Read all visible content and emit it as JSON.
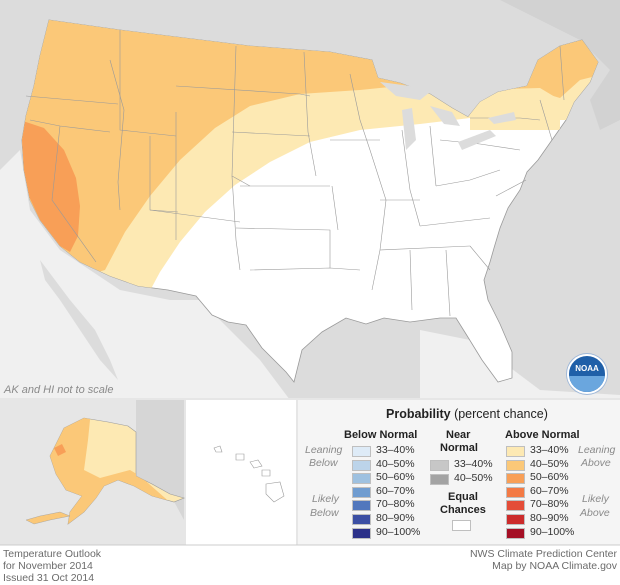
{
  "map": {
    "scale_note": "AK and HI not to scale",
    "logo_text": "NOAA"
  },
  "legend": {
    "title_bold": "Probability",
    "title_rest": " (percent chance)",
    "below": {
      "header": "Below Normal",
      "ranges": [
        "33–40%",
        "40–50%",
        "50–60%",
        "60–70%",
        "70–80%",
        "80–90%",
        "90–100%"
      ],
      "colors": [
        "#deebf7",
        "#bcd4ea",
        "#9ec1e0",
        "#6f9cd0",
        "#5177bd",
        "#3c4fa3",
        "#2c3189"
      ]
    },
    "near": {
      "header_line1": "Near",
      "header_line2": "Normal",
      "ranges": [
        "33–40%",
        "40–50%"
      ],
      "colors": [
        "#c7c7c7",
        "#a3a3a3"
      ]
    },
    "above": {
      "header": "Above Normal",
      "ranges": [
        "33–40%",
        "40–50%",
        "50–60%",
        "60–70%",
        "70–80%",
        "80–90%",
        "90–100%"
      ],
      "colors": [
        "#fde9b3",
        "#fbc878",
        "#f89f57",
        "#f37a45",
        "#e44d38",
        "#cc2b2b",
        "#a50f25"
      ]
    },
    "equal": {
      "line1": "Equal",
      "line2": "Chances",
      "color": "#ffffff"
    },
    "side_labels": {
      "leaning_below_1": "Leaning",
      "leaning_below_2": "Below",
      "likely_below_1": "Likely",
      "likely_below_2": "Below",
      "leaning_above_1": "Leaning",
      "leaning_above_2": "Above",
      "likely_above_1": "Likely",
      "likely_above_2": "Above"
    }
  },
  "footer": {
    "left_line1": "Temperature Outlook",
    "left_line2": "for November 2014",
    "left_line3": "Issued 31 Oct 2014",
    "right_line1": "NWS Climate Prediction Center",
    "right_line2": "Map by NOAA Climate.gov"
  }
}
